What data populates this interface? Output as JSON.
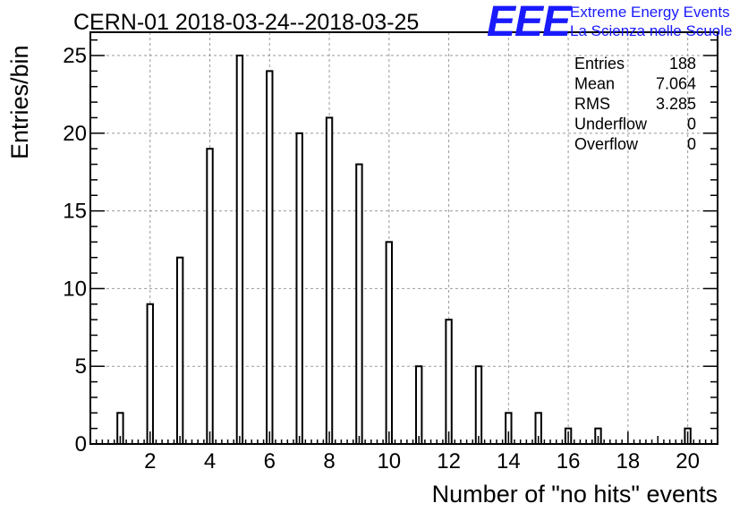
{
  "chart_data": {
    "type": "bar",
    "title": "CERN-01 2018-03-24--2018-03-25",
    "xlabel": "Number of \"no hits\" events",
    "ylabel": "Entries/bin",
    "xlim": [
      0,
      21
    ],
    "ylim": [
      0,
      26.5
    ],
    "x_ticks": [
      2,
      4,
      6,
      8,
      10,
      12,
      14,
      16,
      18,
      20
    ],
    "y_ticks": [
      0,
      5,
      10,
      15,
      20,
      25
    ],
    "grid": true,
    "bins": [
      {
        "x": 1,
        "value": 2
      },
      {
        "x": 2,
        "value": 9
      },
      {
        "x": 3,
        "value": 12
      },
      {
        "x": 4,
        "value": 19
      },
      {
        "x": 5,
        "value": 25
      },
      {
        "x": 6,
        "value": 24
      },
      {
        "x": 7,
        "value": 20
      },
      {
        "x": 8,
        "value": 21
      },
      {
        "x": 9,
        "value": 18
      },
      {
        "x": 10,
        "value": 13
      },
      {
        "x": 11,
        "value": 5
      },
      {
        "x": 12,
        "value": 8
      },
      {
        "x": 13,
        "value": 5
      },
      {
        "x": 14,
        "value": 2
      },
      {
        "x": 15,
        "value": 2
      },
      {
        "x": 16,
        "value": 1
      },
      {
        "x": 17,
        "value": 1
      },
      {
        "x": 20,
        "value": 1
      }
    ],
    "stats": [
      {
        "label": "Entries",
        "value": "188"
      },
      {
        "label": "Mean",
        "value": "7.064"
      },
      {
        "label": "RMS",
        "value": "3.285"
      },
      {
        "label": "Underflow",
        "value": "0"
      },
      {
        "label": "Overflow",
        "value": "0"
      }
    ]
  },
  "logo": {
    "mark": "EEE",
    "line1": "Extreme Energy Events",
    "line2": "La Scienza nelle Scuole",
    "color": "#1a1aff"
  }
}
